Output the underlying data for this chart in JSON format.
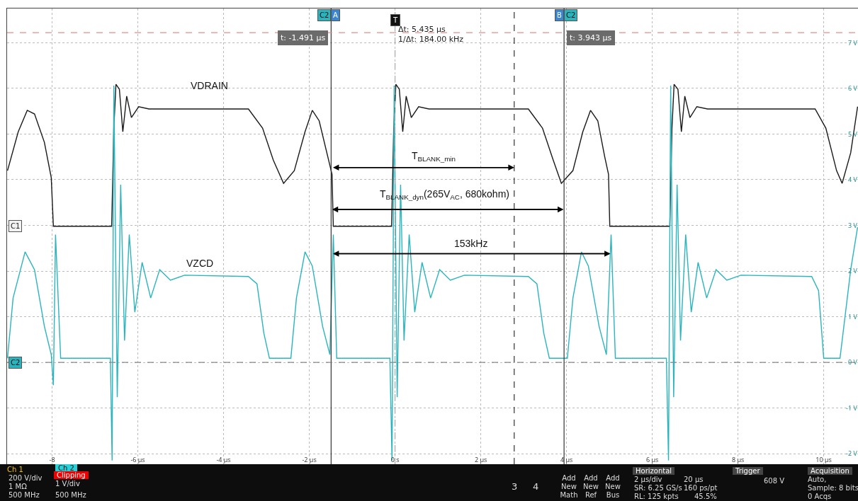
{
  "chart_data": {
    "type": "line",
    "grid": true,
    "xlim": [
      -9.05,
      10.8
    ],
    "ylim": [
      -2.23,
      7.75
    ],
    "xticks": [
      {
        "value": -8,
        "label": "-8"
      },
      {
        "value": -6,
        "label": "-6 µs"
      },
      {
        "value": -4,
        "label": "-4 µs"
      },
      {
        "value": -2,
        "label": "-2 µs"
      },
      {
        "value": 0,
        "label": "0 s"
      },
      {
        "value": 2,
        "label": "2 µs"
      },
      {
        "value": 4,
        "label": "4 µs"
      },
      {
        "value": 6,
        "label": "6 µs"
      },
      {
        "value": 8,
        "label": "8 µs"
      },
      {
        "value": 10,
        "label": "10 µs"
      }
    ],
    "yticks": [
      {
        "value": -2,
        "label": "-2 V"
      },
      {
        "value": -1,
        "label": "-1 V"
      },
      {
        "value": 0,
        "label": "0 V"
      },
      {
        "value": 1,
        "label": "1 V"
      },
      {
        "value": 2,
        "label": "2 V"
      },
      {
        "value": 3,
        "label": "3 V"
      },
      {
        "value": 4,
        "label": "4 V"
      },
      {
        "value": 5,
        "label": "5 V"
      },
      {
        "value": 6,
        "label": "6 V"
      },
      {
        "value": 7,
        "label": "7 V"
      }
    ],
    "series": [
      {
        "color": "#1a1a1a",
        "x": [
          -9.04,
          -8.79,
          -8.58,
          -8.41,
          -8.18,
          -8.02,
          -7.97,
          -6.61,
          -6.56,
          -6.51,
          -6.43,
          -6.35,
          -6.26,
          -6.15,
          -5.98,
          -5.74,
          -3.42,
          -3.09,
          -2.84,
          -2.6,
          -2.35,
          -2.1,
          -1.93,
          -1.77,
          -1.57,
          -1.47,
          -1.44,
          -0.08,
          -0.03,
          0.02,
          0.1,
          0.18,
          0.26,
          0.38,
          0.55,
          0.79,
          3.11,
          3.44,
          3.69,
          3.88,
          4.15,
          4.38,
          4.56,
          4.73,
          4.89,
          4.98,
          5.01,
          6.41,
          6.46,
          6.51,
          6.6,
          6.68,
          6.76,
          6.88,
          7.04,
          7.29,
          9.8,
          10.05,
          10.3,
          10.43,
          10.63,
          10.79
        ],
        "values": [
          4.2,
          5.05,
          5.52,
          5.44,
          4.82,
          4.05,
          2.98,
          2.98,
          5.13,
          6.09,
          5.98,
          5.05,
          5.83,
          5.36,
          5.6,
          5.55,
          5.55,
          5.13,
          4.43,
          3.92,
          4.2,
          5.05,
          5.52,
          5.29,
          4.51,
          4.12,
          2.98,
          2.98,
          5.13,
          6.09,
          5.98,
          5.05,
          5.83,
          5.36,
          5.6,
          5.55,
          5.55,
          5.13,
          4.43,
          3.92,
          4.2,
          5.05,
          5.52,
          5.29,
          4.51,
          4.12,
          2.98,
          2.98,
          5.13,
          6.09,
          5.98,
          5.05,
          5.83,
          5.36,
          5.6,
          5.55,
          5.55,
          5.13,
          4.2,
          3.92,
          4.59,
          5.6
        ]
      },
      {
        "color": "#2ab5be",
        "x": [
          -9.04,
          -8.91,
          -8.63,
          -8.41,
          -8.18,
          -8.02,
          -7.97,
          -7.92,
          -7.8,
          -6.64,
          -6.6,
          -6.56,
          -6.48,
          -6.4,
          -6.31,
          -6.2,
          -6.07,
          -5.9,
          -5.7,
          -5.49,
          -5.24,
          -4.91,
          -3.42,
          -3.22,
          -3.06,
          -2.93,
          -2.43,
          -2.3,
          -2.1,
          -1.93,
          -1.69,
          -1.52,
          -1.44,
          -1.36,
          -0.12,
          -0.07,
          -0.02,
          0.05,
          0.13,
          0.21,
          0.33,
          0.46,
          0.63,
          0.83,
          1.04,
          1.29,
          1.62,
          3.11,
          3.31,
          3.47,
          3.6,
          4.02,
          4.15,
          4.35,
          4.51,
          4.76,
          4.93,
          5.04,
          5.14,
          6.33,
          6.38,
          6.43,
          6.5,
          6.58,
          6.66,
          6.78,
          6.91,
          7.07,
          7.27,
          7.49,
          7.74,
          8.07,
          9.72,
          9.88,
          10.0,
          10.38,
          10.63,
          10.79
        ],
        "values": [
          0.09,
          1.41,
          2.42,
          2.03,
          0.79,
          0.17,
          -0.5,
          2.8,
          0.09,
          0.09,
          -2.15,
          6.06,
          -0.76,
          3.89,
          0.48,
          2.8,
          1.1,
          2.19,
          1.41,
          2.03,
          1.8,
          1.91,
          1.88,
          1.72,
          0.64,
          0.09,
          0.09,
          1.41,
          2.42,
          2.11,
          0.79,
          0.17,
          2.8,
          0.09,
          0.09,
          -2.15,
          6.06,
          -0.76,
          3.89,
          0.48,
          2.8,
          1.1,
          2.19,
          1.41,
          2.03,
          1.8,
          1.91,
          1.88,
          1.72,
          0.64,
          0.09,
          0.09,
          1.41,
          2.42,
          2.11,
          0.79,
          0.17,
          2.8,
          0.09,
          0.09,
          -2.15,
          6.06,
          -0.76,
          3.89,
          0.48,
          2.8,
          1.1,
          2.19,
          1.41,
          2.03,
          1.8,
          1.91,
          1.88,
          1.57,
          0.09,
          0.09,
          2.03,
          2.96
        ]
      }
    ],
    "ref_lines": [
      {
        "axis": "x",
        "value": -1.491,
        "label": "t: -1.491 µs",
        "color": "#333333",
        "line_style": "solid"
      },
      {
        "axis": "x",
        "value": 3.943,
        "label": "t: 3.943 µs",
        "color": "#333333",
        "line_style": "solid"
      },
      {
        "axis": "x",
        "value": 2.78,
        "color": "#333333",
        "line_style": "dashed"
      },
      {
        "axis": "x",
        "value": 0,
        "color": "#aaaaaa",
        "line_style": "dashed"
      },
      {
        "axis": "y",
        "value": 0,
        "color": "#888888",
        "line_style": "dashed"
      },
      {
        "axis": "y",
        "value": 7.22,
        "color": "#e09090",
        "line_style": "dashed"
      }
    ],
    "annotations": [
      "VDRAIN",
      "VZCD",
      "T$_{BLANK_min}$",
      "T$_{BLANK_dyn}$(265V$_{AC}$, 680kohm)",
      "153kHz",
      "Δt: 5.435 µs",
      "1/Δt: 184.00 kHz",
      "C1",
      "C2",
      "C2",
      "A",
      "T",
      "B",
      "C2",
      "Ch 1",
      "200 V/div",
      "1 MΩ",
      "500 MHz",
      "Ch 2",
      "Clipping",
      "1 V/div",
      "500 MHz",
      "3",
      "4",
      "Add New Math",
      "Add New Ref",
      "Add New Bus",
      "Horizontal",
      "2 µs/div",
      "20 µs",
      "SR: 6.25 GS/s",
      "160 ps/pt",
      "RL: 125 kpts",
      "45.5%",
      "Trigger",
      "608 V",
      "Acquisition",
      "Auto,",
      "Sample: 8 bits",
      "0 Acqs"
    ]
  }
}
